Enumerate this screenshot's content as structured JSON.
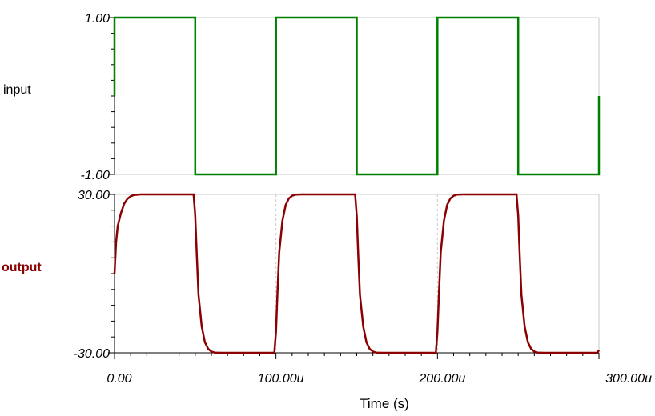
{
  "chart_data": [
    {
      "type": "line",
      "series": [
        {
          "name": "input",
          "color": "#008000",
          "x": [
            0,
            0,
            50,
            50,
            100,
            100,
            150,
            150,
            200,
            200,
            250,
            250,
            300,
            300
          ],
          "y": [
            0,
            1,
            1,
            -1,
            -1,
            1,
            1,
            -1,
            -1,
            1,
            1,
            -1,
            -1,
            0
          ]
        }
      ],
      "y_tick_labels": [
        "1.00",
        "-1.00"
      ],
      "y_ticks": [
        1,
        -1
      ],
      "xlim": [
        0,
        300
      ],
      "ylim": [
        -1,
        1
      ],
      "grid": true
    },
    {
      "type": "line",
      "series": [
        {
          "name": "output",
          "color": "#8b0000",
          "x": [
            0,
            1,
            2,
            4,
            6,
            8,
            10,
            12,
            16,
            20,
            49,
            50,
            51,
            52,
            54,
            56,
            58,
            60,
            62,
            66,
            70,
            99,
            100,
            101,
            102,
            104,
            106,
            108,
            110,
            112,
            116,
            120,
            149,
            150,
            151,
            152,
            154,
            156,
            158,
            160,
            162,
            166,
            170,
            199,
            200,
            201,
            202,
            204,
            206,
            208,
            210,
            212,
            216,
            220,
            249,
            250,
            251,
            252,
            254,
            256,
            258,
            260,
            262,
            266,
            270,
            299,
            300
          ],
          "y": [
            0,
            12,
            18,
            23,
            26.5,
            28.3,
            29.3,
            29.8,
            30,
            30,
            30,
            22,
            6,
            -8,
            -20,
            -26,
            -28.5,
            -29.5,
            -29.9,
            -30,
            -30,
            -30,
            -22,
            -6,
            8,
            20,
            26,
            28.5,
            29.5,
            29.9,
            30,
            30,
            30,
            22,
            6,
            -8,
            -20,
            -26,
            -28.5,
            -29.5,
            -29.9,
            -30,
            -30,
            -30,
            -22,
            -6,
            8,
            20,
            26,
            28.5,
            29.5,
            29.9,
            30,
            30,
            30,
            22,
            6,
            -8,
            -20,
            -26,
            -28.5,
            -29.5,
            -29.9,
            -30,
            -30,
            -30,
            -29
          ]
        }
      ],
      "y_tick_labels": [
        "30.00",
        "-30.00"
      ],
      "y_ticks": [
        30,
        -30
      ],
      "x_tick_labels": [
        "0.00",
        "100.00u",
        "200.00u",
        "300.00u"
      ],
      "x_ticks": [
        0,
        100,
        200,
        300
      ],
      "xlabel": "Time (s)",
      "xlim": [
        0,
        300
      ],
      "ylim": [
        -30,
        30
      ],
      "grid": true
    }
  ]
}
